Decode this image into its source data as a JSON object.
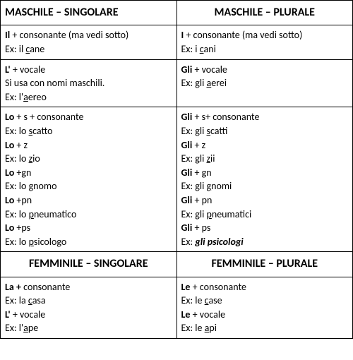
{
  "headers": {
    "ms": "MASCHILE – SINGOLARE",
    "mp": "MASCHILE – PLURALE",
    "fs": "FEMMINILE – SINGOLARE",
    "fp": "FEMMINILE – PLURALE"
  },
  "ms_row1": {
    "art": "Il",
    "rule": " + consonante (ma vedi sotto)",
    "ex_pre": "Ex: il ",
    "ex_u": "c",
    "ex_post": "ane"
  },
  "mp_row1": {
    "art": "I",
    "rule": " + consonante (ma vedi sotto)",
    "ex_pre": "Ex: i ",
    "ex_u": "c",
    "ex_post": "ani"
  },
  "ms_row2": {
    "art": "L'",
    "rule": " + vocale",
    "note": "Si usa con nomi maschili.",
    "ex_pre": "Ex: l'",
    "ex_u": "a",
    "ex_post": "ereo"
  },
  "mp_row2": {
    "art": "Gli",
    "rule": " + vocale",
    "ex_pre": "Ex: gli ",
    "ex_u": "a",
    "ex_post": "erei"
  },
  "ms_row3": {
    "p1_art": "Lo",
    "p1_rule": " + s + consonante",
    "p1_ex_pre": "Ex: lo ",
    "p1_ex_u": "s",
    "p1_ex_post": "catto",
    "p2_art": "Lo",
    "p2_rule": " + z",
    "p2_ex_pre": "Ex: lo ",
    "p2_ex_u": "z",
    "p2_ex_post": "io",
    "p3_art": "Lo",
    "p3_rule": " +gn",
    "p3_ex_pre": "Ex: lo ",
    "p3_ex_u": "g",
    "p3_ex_post": "nomo",
    "p4_art": "Lo",
    "p4_rule": " +pn",
    "p4_ex_pre": "Ex: lo ",
    "p4_ex_u": "p",
    "p4_ex_post": "neumatico",
    "p5_art": "Lo",
    "p5_rule": " +ps",
    "p5_ex_pre": "Ex: lo ",
    "p5_ex_u": "p",
    "p5_ex_post": "sicologo"
  },
  "mp_row3": {
    "p1_art": "Gli",
    "p1_rule": " + s+ consonante",
    "p1_ex_pre": "Ex: gli ",
    "p1_ex_u": "s",
    "p1_ex_post": "catti",
    "p2_art": "Gli",
    "p2_rule": " + z",
    "p2_ex_pre": "Ex: gli ",
    "p2_ex_u": "z",
    "p2_ex_post": "ii",
    "p3_art": "Gli",
    "p3_rule": " + gn",
    "p3_ex_pre": "Ex: gli ",
    "p3_ex_u": "g",
    "p3_ex_post": "nomi",
    "p4_art": "Gli",
    "p4_rule": " + pn",
    "p4_ex_pre": "Ex: gli ",
    "p4_ex_u": "p",
    "p4_ex_post": "neumatici",
    "p5_art": "Gli",
    "p5_rule": " + ps",
    "p5_ex_label": "Ex: ",
    "p5_ex_bi": "gli psicologi"
  },
  "fs_row1": {
    "p1_art": "La +",
    "p1_rule": " consonante",
    "p1_ex_pre": "Ex: la ",
    "p1_ex_u": "c",
    "p1_ex_post": "asa",
    "p2_art": "L'",
    "p2_rule": " + vocale",
    "p2_ex_pre": "Ex: l'",
    "p2_ex_u": "a",
    "p2_ex_post": "pe"
  },
  "fp_row1": {
    "p1_art": "Le",
    "p1_rule": " + consonante",
    "p1_ex_pre": "Ex: le ",
    "p1_ex_u": "c",
    "p1_ex_post": "ase",
    "p2_art": "Le",
    "p2_rule": " + vocale",
    "p2_ex_pre": "Ex: le ",
    "p2_ex_u": "a",
    "p2_ex_post": "pi"
  }
}
